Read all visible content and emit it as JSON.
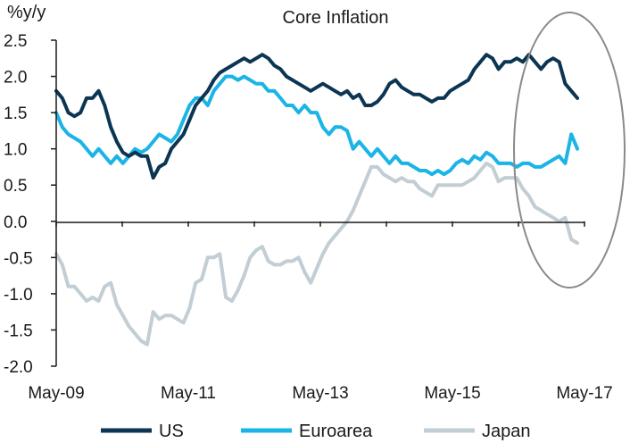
{
  "chart_data": {
    "type": "line",
    "title": "Core Inflation",
    "ylabel": "%y/y",
    "xlabel": "",
    "ylim": [
      -2.0,
      2.5
    ],
    "yticks": [
      "2.5",
      "2.0",
      "1.5",
      "1.0",
      "0.5",
      "0.0",
      "-0.5",
      "-1.0",
      "-1.5",
      "-2.0"
    ],
    "xticks": [
      "May-09",
      "May-11",
      "May-13",
      "May-15",
      "May-17"
    ],
    "x_start": "2009-05",
    "x_end": "2017-05",
    "legend_position": "bottom",
    "annotation": "ellipse around 2016-2017 period",
    "series": [
      {
        "name": "US",
        "color": "#0b3552",
        "values": [
          1.8,
          1.7,
          1.5,
          1.45,
          1.5,
          1.7,
          1.7,
          1.8,
          1.6,
          1.3,
          1.1,
          0.95,
          0.9,
          0.95,
          0.9,
          0.9,
          0.6,
          0.75,
          0.8,
          1.0,
          1.1,
          1.2,
          1.4,
          1.6,
          1.7,
          1.8,
          1.95,
          2.05,
          2.1,
          2.15,
          2.2,
          2.25,
          2.2,
          2.25,
          2.3,
          2.25,
          2.15,
          2.1,
          2.0,
          1.95,
          1.9,
          1.85,
          1.8,
          1.85,
          1.9,
          1.85,
          1.8,
          1.75,
          1.8,
          1.7,
          1.75,
          1.6,
          1.6,
          1.65,
          1.75,
          1.9,
          1.95,
          1.85,
          1.8,
          1.75,
          1.75,
          1.7,
          1.65,
          1.7,
          1.7,
          1.8,
          1.85,
          1.9,
          1.95,
          2.1,
          2.2,
          2.3,
          2.25,
          2.1,
          2.2,
          2.2,
          2.25,
          2.2,
          2.3,
          2.2,
          2.1,
          2.2,
          2.25,
          2.2,
          1.9,
          1.8,
          1.7
        ]
      },
      {
        "name": "Euroarea",
        "color": "#1bb4e6",
        "values": [
          1.5,
          1.3,
          1.2,
          1.15,
          1.1,
          1.0,
          0.9,
          1.0,
          0.9,
          0.8,
          0.9,
          0.8,
          0.9,
          1.0,
          0.95,
          1.0,
          1.1,
          1.2,
          1.15,
          1.1,
          1.2,
          1.4,
          1.6,
          1.7,
          1.7,
          1.6,
          1.8,
          1.9,
          2.0,
          2.0,
          1.95,
          2.0,
          1.95,
          1.9,
          1.9,
          1.8,
          1.8,
          1.7,
          1.6,
          1.6,
          1.5,
          1.6,
          1.5,
          1.5,
          1.3,
          1.2,
          1.3,
          1.3,
          1.25,
          1.0,
          1.1,
          1.0,
          0.9,
          1.0,
          0.9,
          0.8,
          0.9,
          0.8,
          0.8,
          0.75,
          0.7,
          0.7,
          0.65,
          0.7,
          0.65,
          0.7,
          0.8,
          0.85,
          0.8,
          0.9,
          0.85,
          0.95,
          0.9,
          0.8,
          0.8,
          0.8,
          0.75,
          0.8,
          0.8,
          0.75,
          0.75,
          0.8,
          0.85,
          0.9,
          0.8,
          1.2,
          1.0
        ]
      },
      {
        "name": "Japan",
        "color": "#c2cdd4",
        "values": [
          -0.45,
          -0.6,
          -0.9,
          -0.9,
          -1.0,
          -1.1,
          -1.05,
          -1.1,
          -0.9,
          -0.85,
          -1.15,
          -1.3,
          -1.45,
          -1.55,
          -1.65,
          -1.7,
          -1.25,
          -1.35,
          -1.3,
          -1.3,
          -1.35,
          -1.4,
          -1.2,
          -0.85,
          -0.8,
          -0.5,
          -0.5,
          -0.45,
          -1.05,
          -1.1,
          -0.95,
          -0.75,
          -0.5,
          -0.4,
          -0.35,
          -0.55,
          -0.6,
          -0.6,
          -0.55,
          -0.55,
          -0.5,
          -0.7,
          -0.85,
          -0.65,
          -0.45,
          -0.3,
          -0.2,
          -0.1,
          0.0,
          0.15,
          0.35,
          0.55,
          0.75,
          0.75,
          0.65,
          0.6,
          0.55,
          0.6,
          0.55,
          0.55,
          0.45,
          0.4,
          0.35,
          0.5,
          0.5,
          0.5,
          0.5,
          0.5,
          0.55,
          0.6,
          0.7,
          0.8,
          0.75,
          0.55,
          0.6,
          0.6,
          0.6,
          0.45,
          0.35,
          0.2,
          0.15,
          0.1,
          0.05,
          0.0,
          0.05,
          -0.25,
          -0.3
        ]
      }
    ]
  }
}
